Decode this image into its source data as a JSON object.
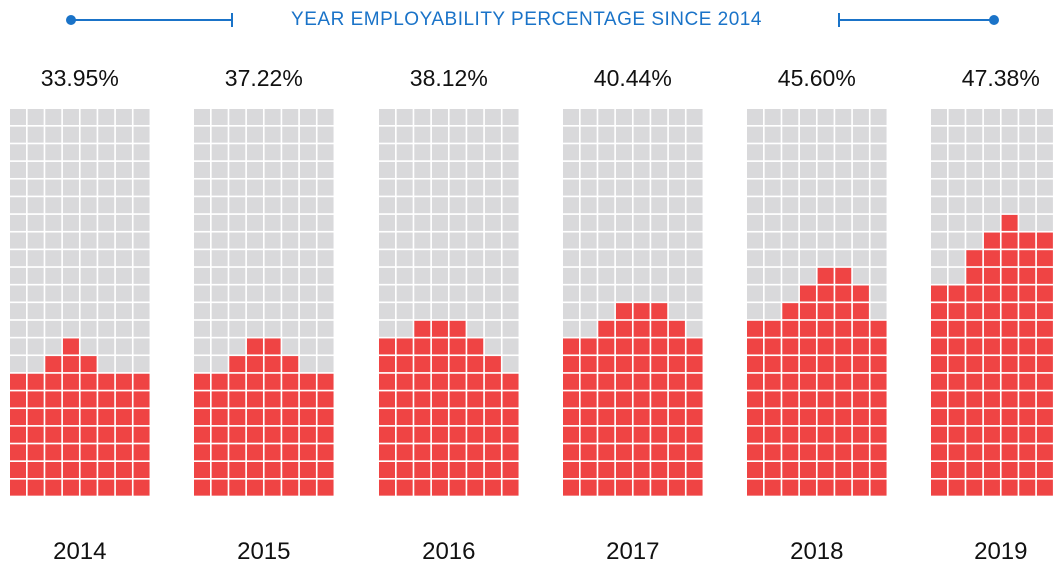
{
  "chart_data": {
    "type": "bar",
    "title": "YEAR EMPLOYABILITY PERCENTAGE SINCE 2014",
    "categories": [
      "2014",
      "2015",
      "2016",
      "2017",
      "2018",
      "2019"
    ],
    "values": [
      33.95,
      37.22,
      38.12,
      40.44,
      45.6,
      47.38
    ],
    "value_labels": [
      "33.95%",
      "37.22%",
      "38.12%",
      "40.44%",
      "45.60%",
      "47.38%"
    ],
    "column_profiles": [
      [
        7,
        7,
        8,
        9,
        8,
        7,
        7,
        7
      ],
      [
        7,
        7,
        8,
        9,
        9,
        8,
        7,
        7
      ],
      [
        9,
        9,
        10,
        10,
        10,
        9,
        8,
        7
      ],
      [
        9,
        9,
        10,
        11,
        11,
        11,
        10,
        9
      ],
      [
        10,
        10,
        11,
        12,
        13,
        13,
        12,
        10
      ],
      [
        12,
        12,
        14,
        15,
        16,
        15,
        15,
        12
      ]
    ],
    "grid_rows": 22,
    "grid_cols": 8,
    "colors": {
      "filled": "#ef4444",
      "empty": "#d9d9db",
      "accent": "#1a73c8",
      "text": "#111111"
    }
  }
}
